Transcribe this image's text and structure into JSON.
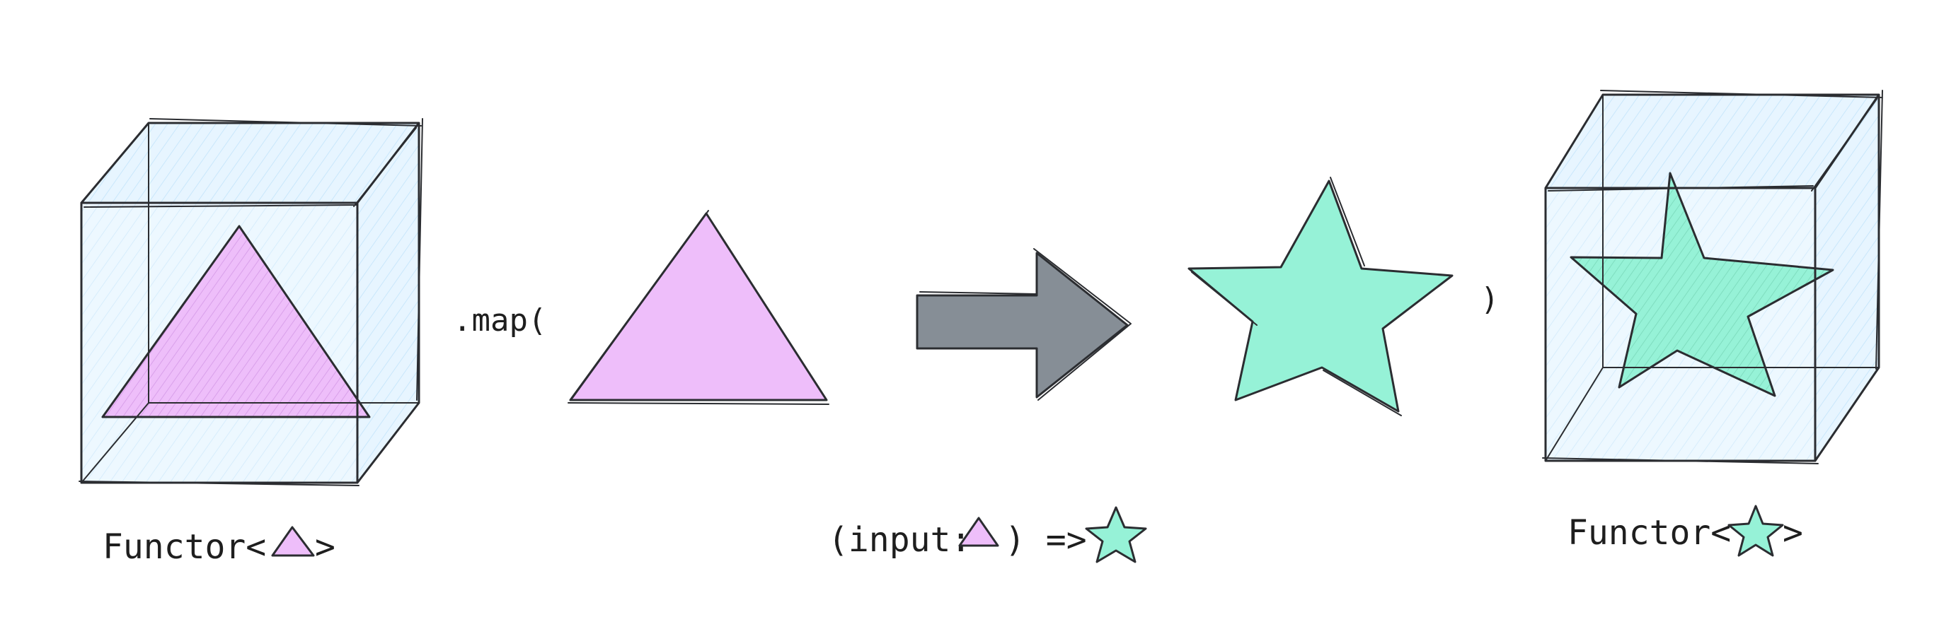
{
  "colors": {
    "background": "#ffffff",
    "stroke": "#2b2d31",
    "box_fill": "#e7f5ff",
    "triangle_fill": "#eebefa",
    "star_fill": "#96f2d7",
    "arrow_fill": "#868e96"
  },
  "labels": {
    "map_open": ".map(",
    "map_close": ")",
    "input_left_functor": {
      "prefix": "Functor<",
      "suffix": ">",
      "inline_shape_icon": "triangle-icon"
    },
    "output_functor": {
      "prefix": "Functor<",
      "suffix": ">",
      "inline_shape_icon": "star-icon"
    },
    "function_signature": {
      "prefix": "(input:",
      "middle": ") =>",
      "input_shape_icon": "triangle-icon",
      "output_shape_icon": "star-icon"
    }
  },
  "shapes": {
    "input_box_content": "triangle-icon",
    "function_input": "triangle-icon",
    "transform_arrow": "right-arrow-icon",
    "function_output": "star-icon",
    "output_box_content": "star-icon"
  }
}
